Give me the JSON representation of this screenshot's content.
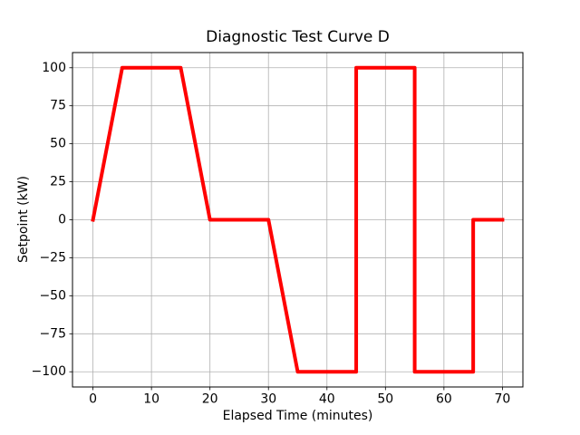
{
  "figure": {
    "background": "#ffffff"
  },
  "chart_data": {
    "type": "line",
    "title": "Diagnostic Test Curve D",
    "xlabel": "Elapsed Time (minutes)",
    "ylabel": "Setpoint (kW)",
    "series": [
      {
        "name": "setpoint",
        "color": "#ff0000",
        "line_width": 4,
        "x": [
          0,
          5,
          15,
          20,
          30,
          35,
          45,
          45,
          55,
          55,
          65,
          65,
          70
        ],
        "y": [
          0,
          100,
          100,
          0,
          0,
          -100,
          -100,
          100,
          100,
          -100,
          -100,
          0,
          0
        ]
      }
    ],
    "xticks": {
      "values": [
        0,
        10,
        20,
        30,
        40,
        50,
        60,
        70
      ],
      "labels": [
        "0",
        "10",
        "20",
        "30",
        "40",
        "50",
        "60",
        "70"
      ]
    },
    "yticks": {
      "values": [
        -100,
        -75,
        -50,
        -25,
        0,
        25,
        50,
        75,
        100
      ],
      "labels": [
        "−100",
        "−75",
        "−50",
        "−25",
        "0",
        "25",
        "50",
        "75",
        "100"
      ]
    },
    "xlim": [
      -3.5,
      73.5
    ],
    "ylim": [
      -110,
      110
    ],
    "grid": true,
    "grid_color": "#b0b0b0",
    "spine_color": "#000000",
    "legend": "none"
  }
}
